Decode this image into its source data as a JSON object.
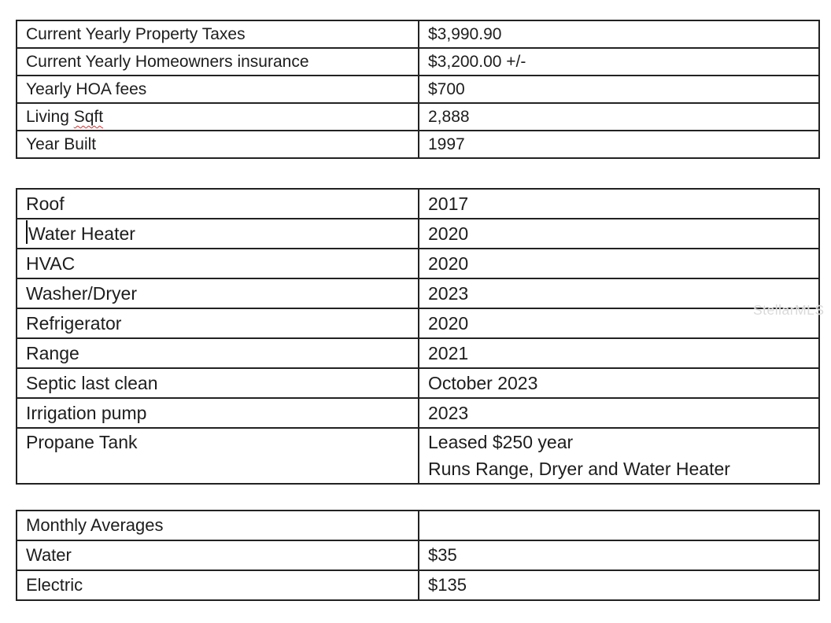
{
  "watermark": "StellarMLS",
  "tables": [
    {
      "name": "property-summary",
      "rows": [
        {
          "label": "Current Yearly Property Taxes",
          "value": "$3,990.90"
        },
        {
          "label": "Current Yearly Homeowners insurance",
          "value": "$3,200.00 +/-"
        },
        {
          "label": "Yearly HOA fees",
          "value": "$700"
        },
        {
          "label_prefix": "Living ",
          "label_misspelled": "Sqft",
          "value": "2,888"
        },
        {
          "label": "Year Built",
          "value": "1997"
        }
      ]
    },
    {
      "name": "systems-appliances",
      "rows": [
        {
          "label": "Roof",
          "value": "2017"
        },
        {
          "label": "Water Heater",
          "value": "2020"
        },
        {
          "label": "HVAC",
          "value": "2020"
        },
        {
          "label": "Washer/Dryer",
          "value": "2023"
        },
        {
          "label": "Refrigerator",
          "value": "2020"
        },
        {
          "label": "Range",
          "value": "2021"
        },
        {
          "label": "Septic last clean",
          "value": "October 2023"
        },
        {
          "label": "Irrigation pump",
          "value": "2023"
        },
        {
          "label": "Propane Tank",
          "value_line1": "Leased $250 year",
          "value_line2": "Runs Range, Dryer and Water Heater"
        }
      ]
    },
    {
      "name": "monthly-averages",
      "rows": [
        {
          "label": "Monthly Averages",
          "value": ""
        },
        {
          "label": "Water",
          "value": "$35"
        },
        {
          "label": "Electric",
          "value": "$135"
        }
      ]
    }
  ]
}
